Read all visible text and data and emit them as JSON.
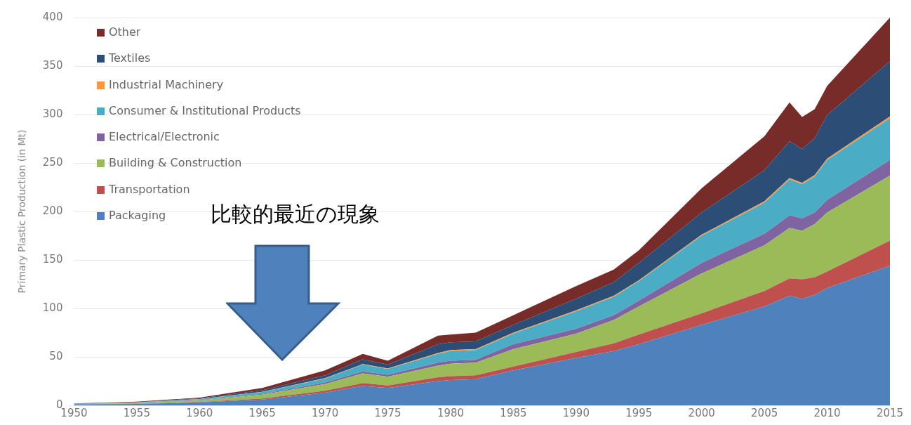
{
  "chart_data": {
    "type": "area",
    "ylabel": "Primary Plastic Production (in Mt)",
    "stacked": true,
    "x": [
      1950,
      1955,
      1960,
      1965,
      1970,
      1973,
      1975,
      1979,
      1980,
      1982,
      1985,
      1990,
      1993,
      1995,
      2000,
      2005,
      2007,
      2008,
      2009,
      2010,
      2015
    ],
    "xlim": [
      1950,
      2015
    ],
    "xticks": [
      1950,
      1955,
      1960,
      1965,
      1970,
      1975,
      1980,
      1985,
      1990,
      1995,
      2000,
      2005,
      2010,
      2015
    ],
    "ylim": [
      0,
      400
    ],
    "yticks": [
      0,
      50,
      100,
      150,
      200,
      250,
      300,
      350,
      400
    ],
    "grid": "y",
    "legend": "top left",
    "marker": "none",
    "annotations": [
      "比較的最近の現象"
    ],
    "series": [
      {
        "name": "Packaging",
        "color": "#4f81bd",
        "values": [
          1,
          1.5,
          3,
          6,
          13,
          20,
          18,
          25,
          26,
          27,
          36,
          49,
          56,
          63,
          83,
          102,
          113,
          110,
          114,
          121,
          144
        ]
      },
      {
        "name": "Transportation",
        "color": "#c0504d",
        "values": [
          0.1,
          0.2,
          0.5,
          1,
          2,
          3,
          2.5,
          4,
          4,
          4,
          4,
          6,
          8,
          10,
          12,
          16,
          18,
          20,
          18,
          17,
          26
        ]
      },
      {
        "name": "Building & Construction",
        "color": "#9bbb59",
        "values": [
          0.2,
          0.5,
          1.5,
          4,
          7,
          10,
          9,
          12,
          13,
          13,
          18,
          19,
          24,
          29,
          41,
          47,
          52,
          50,
          55,
          61,
          67
        ]
      },
      {
        "name": "Electrical/Electronic",
        "color": "#8064a2",
        "values": [
          0.1,
          0.2,
          0.4,
          0.7,
          1.5,
          2,
          2,
          3,
          3,
          3,
          5,
          5,
          5,
          6,
          11,
          12,
          13,
          13,
          12,
          13,
          16
        ]
      },
      {
        "name": "Consumer & Institutional Products",
        "color": "#4bacc6",
        "values": [
          0.2,
          0.5,
          1,
          2,
          4,
          7,
          6,
          9,
          10,
          10,
          11,
          18,
          19,
          20,
          28,
          32,
          37,
          35,
          37,
          41,
          43
        ]
      },
      {
        "name": "Industrial Machinery",
        "color": "#f79646",
        "values": [
          0.1,
          0.1,
          0.2,
          0.3,
          0.5,
          0.5,
          0.5,
          1,
          1,
          1,
          1,
          1,
          1,
          1,
          1,
          1.5,
          1.5,
          1.5,
          1.5,
          1.5,
          2
        ]
      },
      {
        "name": "Textiles",
        "color": "#2c4d75",
        "values": [
          0.1,
          0.3,
          0.7,
          1.5,
          3,
          5,
          4,
          9,
          8,
          8,
          8,
          12,
          14,
          18,
          23,
          32,
          38,
          35,
          38,
          45,
          57
        ]
      },
      {
        "name": "Other",
        "color": "#772c2a",
        "values": [
          0.2,
          0.5,
          0.7,
          2.5,
          5,
          5.5,
          4,
          9,
          8,
          9,
          10,
          13,
          13,
          13,
          25,
          35,
          40,
          33,
          30,
          30,
          45
        ]
      }
    ]
  }
}
